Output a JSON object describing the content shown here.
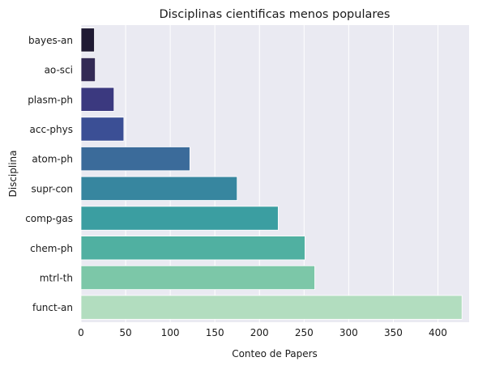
{
  "chart_data": {
    "type": "bar",
    "orientation": "horizontal",
    "title": "Disciplinas cientificas menos populares",
    "xlabel": "Conteo de Papers",
    "ylabel": "Disciplina",
    "categories": [
      "bayes-an",
      "ao-sci",
      "plasm-ph",
      "acc-phys",
      "atom-ph",
      "supr-con",
      "comp-gas",
      "chem-ph",
      "mtrl-th",
      "funct-an"
    ],
    "values": [
      15,
      16,
      37,
      48,
      122,
      175,
      221,
      251,
      262,
      427
    ],
    "xlim": [
      0,
      435
    ],
    "xticks": [
      0,
      50,
      100,
      150,
      200,
      250,
      300,
      350,
      400
    ],
    "grid": true,
    "legend": "none",
    "colors": [
      "#1f1a33",
      "#332a55",
      "#3b397f",
      "#3b4f95",
      "#3b6b9a",
      "#37869f",
      "#3b9ea1",
      "#50b0a1",
      "#7cc7a8",
      "#b2ddbf"
    ],
    "background": "#eaeaf2",
    "grid_color": "#ffffff"
  }
}
